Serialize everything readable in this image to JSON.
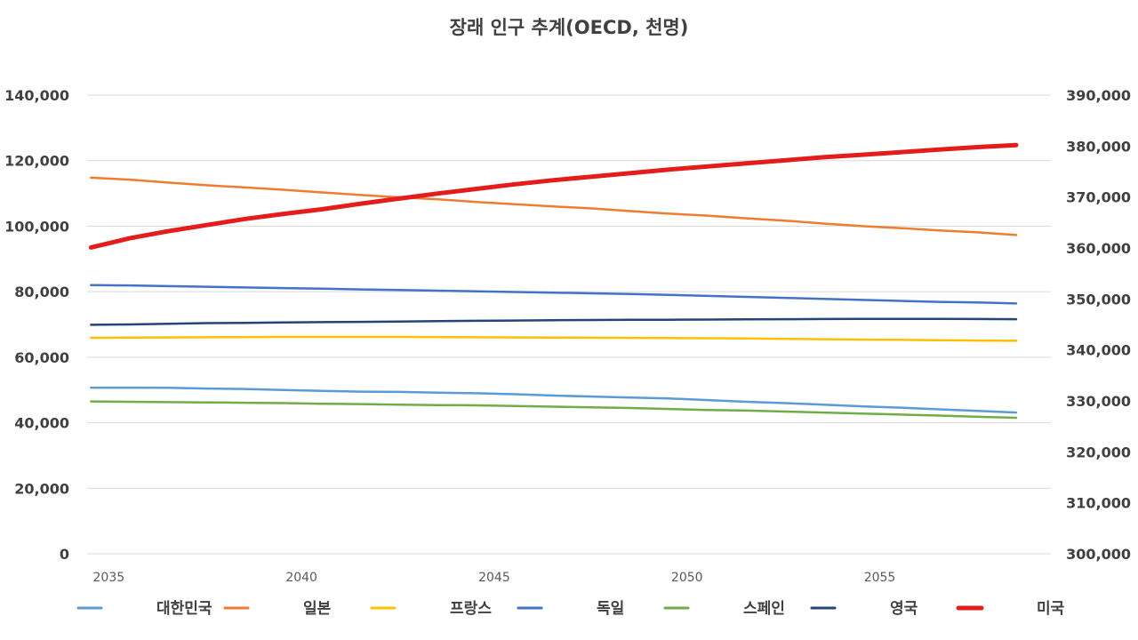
{
  "chart_data": {
    "type": "line",
    "title": "장래 인구 추계(OECD, 천명)",
    "x": [
      2035,
      2036,
      2037,
      2038,
      2039,
      2040,
      2041,
      2042,
      2043,
      2044,
      2045,
      2046,
      2047,
      2048,
      2049,
      2050,
      2051,
      2052,
      2053,
      2054,
      2055,
      2056,
      2057,
      2058,
      2059
    ],
    "x_ticks": [
      "2035",
      "2040",
      "2045",
      "2050",
      "2055"
    ],
    "y_left": {
      "range": [
        0,
        140000
      ],
      "ticks": [
        "0",
        "20,000",
        "40,000",
        "60,000",
        "80,000",
        "100,000",
        "120,000",
        "140,000"
      ]
    },
    "y_right": {
      "range": [
        300000,
        390000
      ],
      "ticks": [
        "300,000",
        "310,000",
        "320,000",
        "330,000",
        "340,000",
        "350,000",
        "360,000",
        "370,000",
        "380,000",
        "390,000"
      ]
    },
    "grid": true,
    "legend_position": "bottom",
    "series": [
      {
        "name": "대한민국",
        "axis": "left",
        "color": "#5b9bd5",
        "width": 2.5,
        "values": [
          50700,
          50700,
          50650,
          50450,
          50300,
          50000,
          49700,
          49500,
          49400,
          49200,
          49000,
          48700,
          48300,
          48000,
          47700,
          47400,
          46900,
          46400,
          46000,
          45500,
          45000,
          44600,
          44100,
          43600,
          43100
        ]
      },
      {
        "name": "일본",
        "axis": "left",
        "color": "#ed7d31",
        "width": 2.5,
        "values": [
          114800,
          114200,
          113300,
          112500,
          111800,
          111100,
          110300,
          109500,
          108800,
          108200,
          107400,
          106700,
          106000,
          105400,
          104600,
          103800,
          103200,
          102400,
          101700,
          100800,
          100000,
          99400,
          98700,
          98100,
          97300
        ]
      },
      {
        "name": "프랑스",
        "axis": "left",
        "color": "#ffc000",
        "width": 2.5,
        "values": [
          65900,
          66000,
          66050,
          66100,
          66150,
          66200,
          66200,
          66200,
          66200,
          66150,
          66100,
          66050,
          66000,
          65950,
          65900,
          65850,
          65800,
          65700,
          65600,
          65500,
          65400,
          65300,
          65200,
          65100,
          65000
        ]
      },
      {
        "name": "독일",
        "axis": "left",
        "color": "#4472c4",
        "width": 2.5,
        "values": [
          82000,
          81900,
          81700,
          81500,
          81300,
          81100,
          80900,
          80700,
          80500,
          80300,
          80100,
          79900,
          79700,
          79500,
          79300,
          79000,
          78700,
          78400,
          78100,
          77800,
          77500,
          77200,
          76900,
          76700,
          76400
        ]
      },
      {
        "name": "스페인",
        "axis": "left",
        "color": "#70ad47",
        "width": 2.5,
        "values": [
          46500,
          46400,
          46300,
          46200,
          46100,
          46000,
          45800,
          45700,
          45500,
          45400,
          45300,
          45100,
          44900,
          44700,
          44500,
          44200,
          43900,
          43700,
          43400,
          43100,
          42800,
          42500,
          42200,
          41800,
          41500
        ]
      },
      {
        "name": "영국",
        "axis": "left",
        "color": "#264478",
        "width": 2.5,
        "values": [
          69900,
          70000,
          70200,
          70400,
          70500,
          70600,
          70700,
          70800,
          70900,
          71000,
          71100,
          71200,
          71300,
          71350,
          71400,
          71450,
          71500,
          71550,
          71600,
          71650,
          71700,
          71700,
          71700,
          71650,
          71600
        ]
      },
      {
        "name": "미국",
        "axis": "right",
        "color": "#e51c1c",
        "width": 5,
        "values": [
          360100,
          361900,
          363300,
          364500,
          365700,
          366700,
          367600,
          368700,
          369700,
          370700,
          371600,
          372500,
          373300,
          374000,
          374700,
          375400,
          376000,
          376600,
          377200,
          377800,
          378300,
          378800,
          379300,
          379800,
          380200
        ]
      }
    ]
  }
}
